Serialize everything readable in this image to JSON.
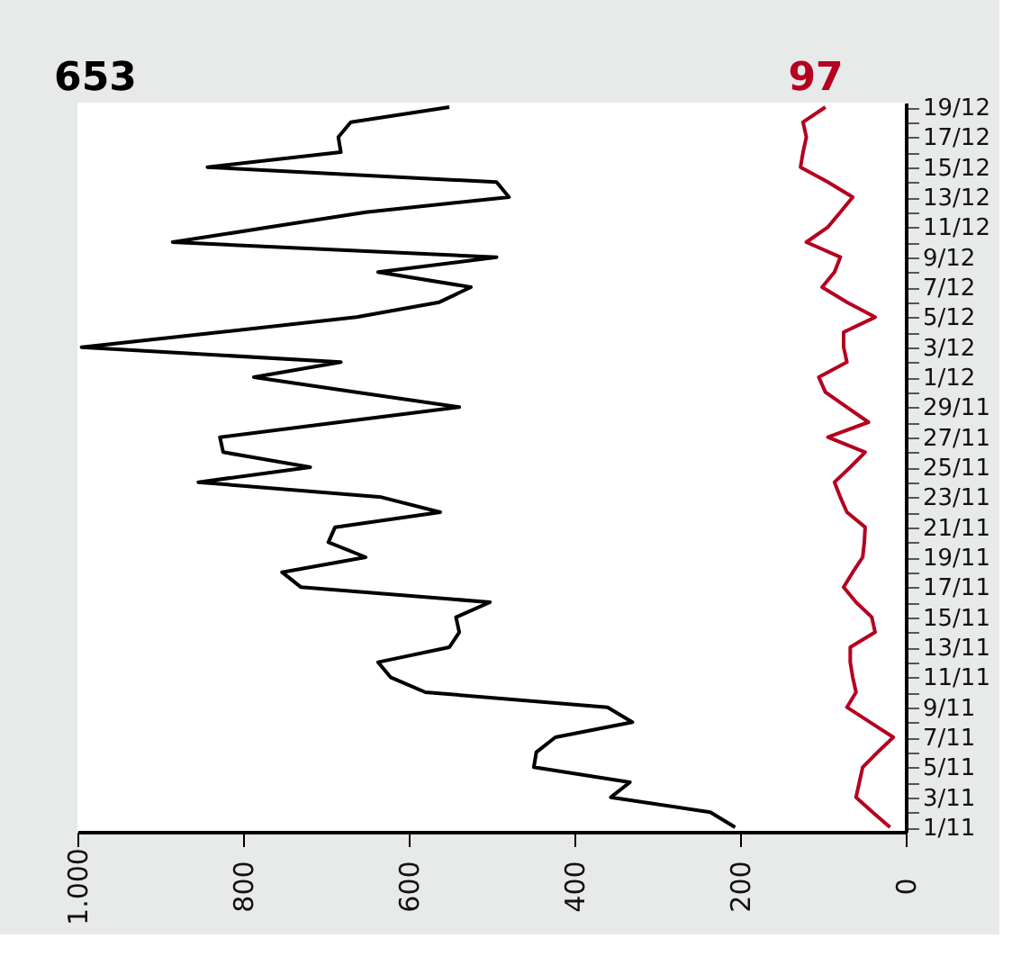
{
  "chart_data": {
    "type": "line",
    "orientation": "horizontal",
    "categories": [
      "19/12",
      null,
      "17/12",
      null,
      "15/12",
      null,
      "13/12",
      null,
      "11/12",
      null,
      "9/12",
      null,
      "7/12",
      null,
      "5/12",
      null,
      "3/12",
      null,
      "1/12",
      null,
      "29/11",
      null,
      "27/11",
      null,
      "25/11",
      null,
      "23/11",
      null,
      "21/11",
      null,
      "19/11",
      null,
      "17/11",
      null,
      "15/11",
      null,
      "13/11",
      null,
      "11/11",
      null,
      "9/11",
      null,
      "7/11",
      null,
      "5/11",
      null,
      "3/11",
      null,
      "1/11"
    ],
    "series": [
      {
        "color": "#000000",
        "values": [
          551,
          670,
          685,
          682,
          843,
          494,
          479,
          652,
          768,
          885,
          494,
          637,
          525,
          563,
          663,
          828,
          995,
          682,
          787,
          663,
          539,
          684,
          828,
          824,
          719,
          854,
          633,
          562,
          689,
          697,
          652,
          753,
          730,
          502,
          543,
          539,
          551,
          637,
          622,
          580,
          360,
          330,
          423,
          446,
          449,
          333,
          356,
          236,
          206
        ]
      },
      {
        "color": "#b5001f",
        "values": [
          97,
          124,
          120,
          124,
          127,
          94,
          64,
          79,
          94,
          120,
          79,
          86,
          101,
          71,
          37,
          75,
          75,
          71,
          105,
          97,
          71,
          45,
          94,
          49,
          67,
          86,
          79,
          71,
          49,
          50,
          52,
          64,
          75,
          60,
          41,
          37,
          67,
          67,
          64,
          60,
          71,
          43,
          15,
          34,
          52,
          56,
          60,
          40,
          19
        ]
      }
    ],
    "xlim": [
      1000,
      0
    ],
    "xticks": [
      {
        "value": 1000,
        "label": "1.000"
      },
      800,
      600,
      400,
      200,
      0
    ],
    "annotations": [
      "653",
      "97"
    ],
    "grid": false,
    "marker": "none",
    "line_style": "solid"
  }
}
